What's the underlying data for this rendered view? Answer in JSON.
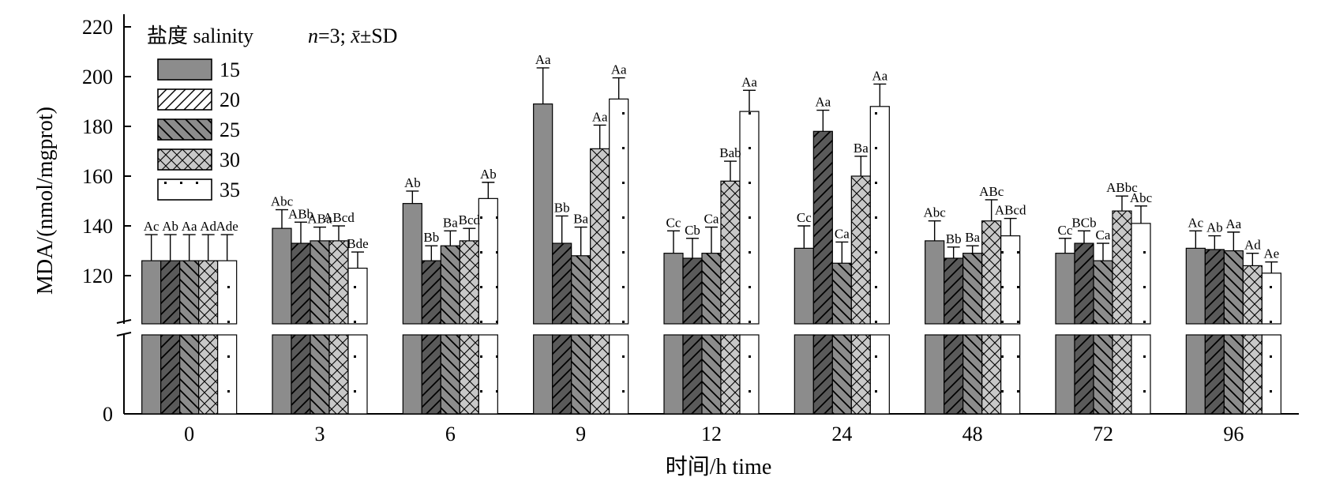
{
  "chart_data": {
    "type": "bar",
    "title": "",
    "xlabel": "时间/h time",
    "ylabel": "MDA/(nmol/mgprot)",
    "y_ticks": [
      "0",
      "120",
      "140",
      "160",
      "180",
      "200",
      "220"
    ],
    "ylim_broken": [
      100,
      220
    ],
    "axis_break": true,
    "categories": [
      "0",
      "3",
      "6",
      "9",
      "12",
      "24",
      "48",
      "72",
      "96"
    ],
    "legend": {
      "title": "盐度 salinity",
      "stat_note": {
        "n_label": "n",
        "n_value": "=3; ",
        "mean_symbol": "x̄",
        "sd": "±SD"
      },
      "placement": "top-left"
    },
    "series": [
      {
        "name": "15",
        "fill": "#8c8c8c",
        "pattern": "solid",
        "values": [
          126,
          139,
          149,
          189,
          129,
          131,
          134,
          129,
          131
        ],
        "errors": [
          10.5,
          7.5,
          5,
          14.5,
          9,
          9,
          8,
          6,
          7
        ],
        "labels": [
          "Ac",
          "Abc",
          "Ab",
          "Aa",
          "Cc",
          "Cc",
          "Abc",
          "Cc",
          "Ac"
        ]
      },
      {
        "name": "20",
        "fill": "#5a5a5a",
        "pattern": "diag-up",
        "values": [
          126,
          133,
          126,
          133,
          127,
          178,
          127,
          133,
          130.5
        ],
        "errors": [
          10.5,
          8.5,
          6,
          11,
          8,
          8.5,
          4.5,
          5,
          5.5
        ],
        "labels": [
          "Ab",
          "ABb",
          "Bb",
          "Bb",
          "Cb",
          "Aa",
          "Bb",
          "BCb",
          "Ab"
        ]
      },
      {
        "name": "25",
        "fill": "#8c8c8c",
        "pattern": "diag-down",
        "values": [
          126,
          134,
          132,
          128,
          129,
          125,
          129,
          126,
          130
        ],
        "errors": [
          10.5,
          5.5,
          6,
          11.5,
          10.5,
          8.5,
          3,
          7,
          7.5
        ],
        "labels": [
          "Aa",
          "ABa",
          "Ba",
          "Ba",
          "Ca",
          "Ca",
          "Ba",
          "Ca",
          "Aa"
        ]
      },
      {
        "name": "30",
        "fill": "#c8c8c8",
        "pattern": "cross",
        "values": [
          126,
          134,
          134,
          171,
          158,
          160,
          142,
          146,
          124
        ],
        "errors": [
          10.5,
          6,
          5,
          9.5,
          8,
          8,
          8.5,
          6,
          5
        ],
        "labels": [
          "Ad",
          "ABcd",
          "Bcd",
          "Aa",
          "Bab",
          "Ba",
          "ABc",
          "ABbc",
          "Ad"
        ]
      },
      {
        "name": "35",
        "fill": "#ffffff",
        "pattern": "dots",
        "values": [
          126,
          123,
          151,
          191,
          186,
          188,
          136,
          141,
          121
        ],
        "errors": [
          10.5,
          6.5,
          6.5,
          8.5,
          8.5,
          9,
          7,
          7,
          4.5
        ],
        "labels": [
          "Ade",
          "Bde",
          "Ab",
          "Aa",
          "Aa",
          "Aa",
          "ABcd",
          "Abc",
          "Ae"
        ]
      }
    ]
  }
}
